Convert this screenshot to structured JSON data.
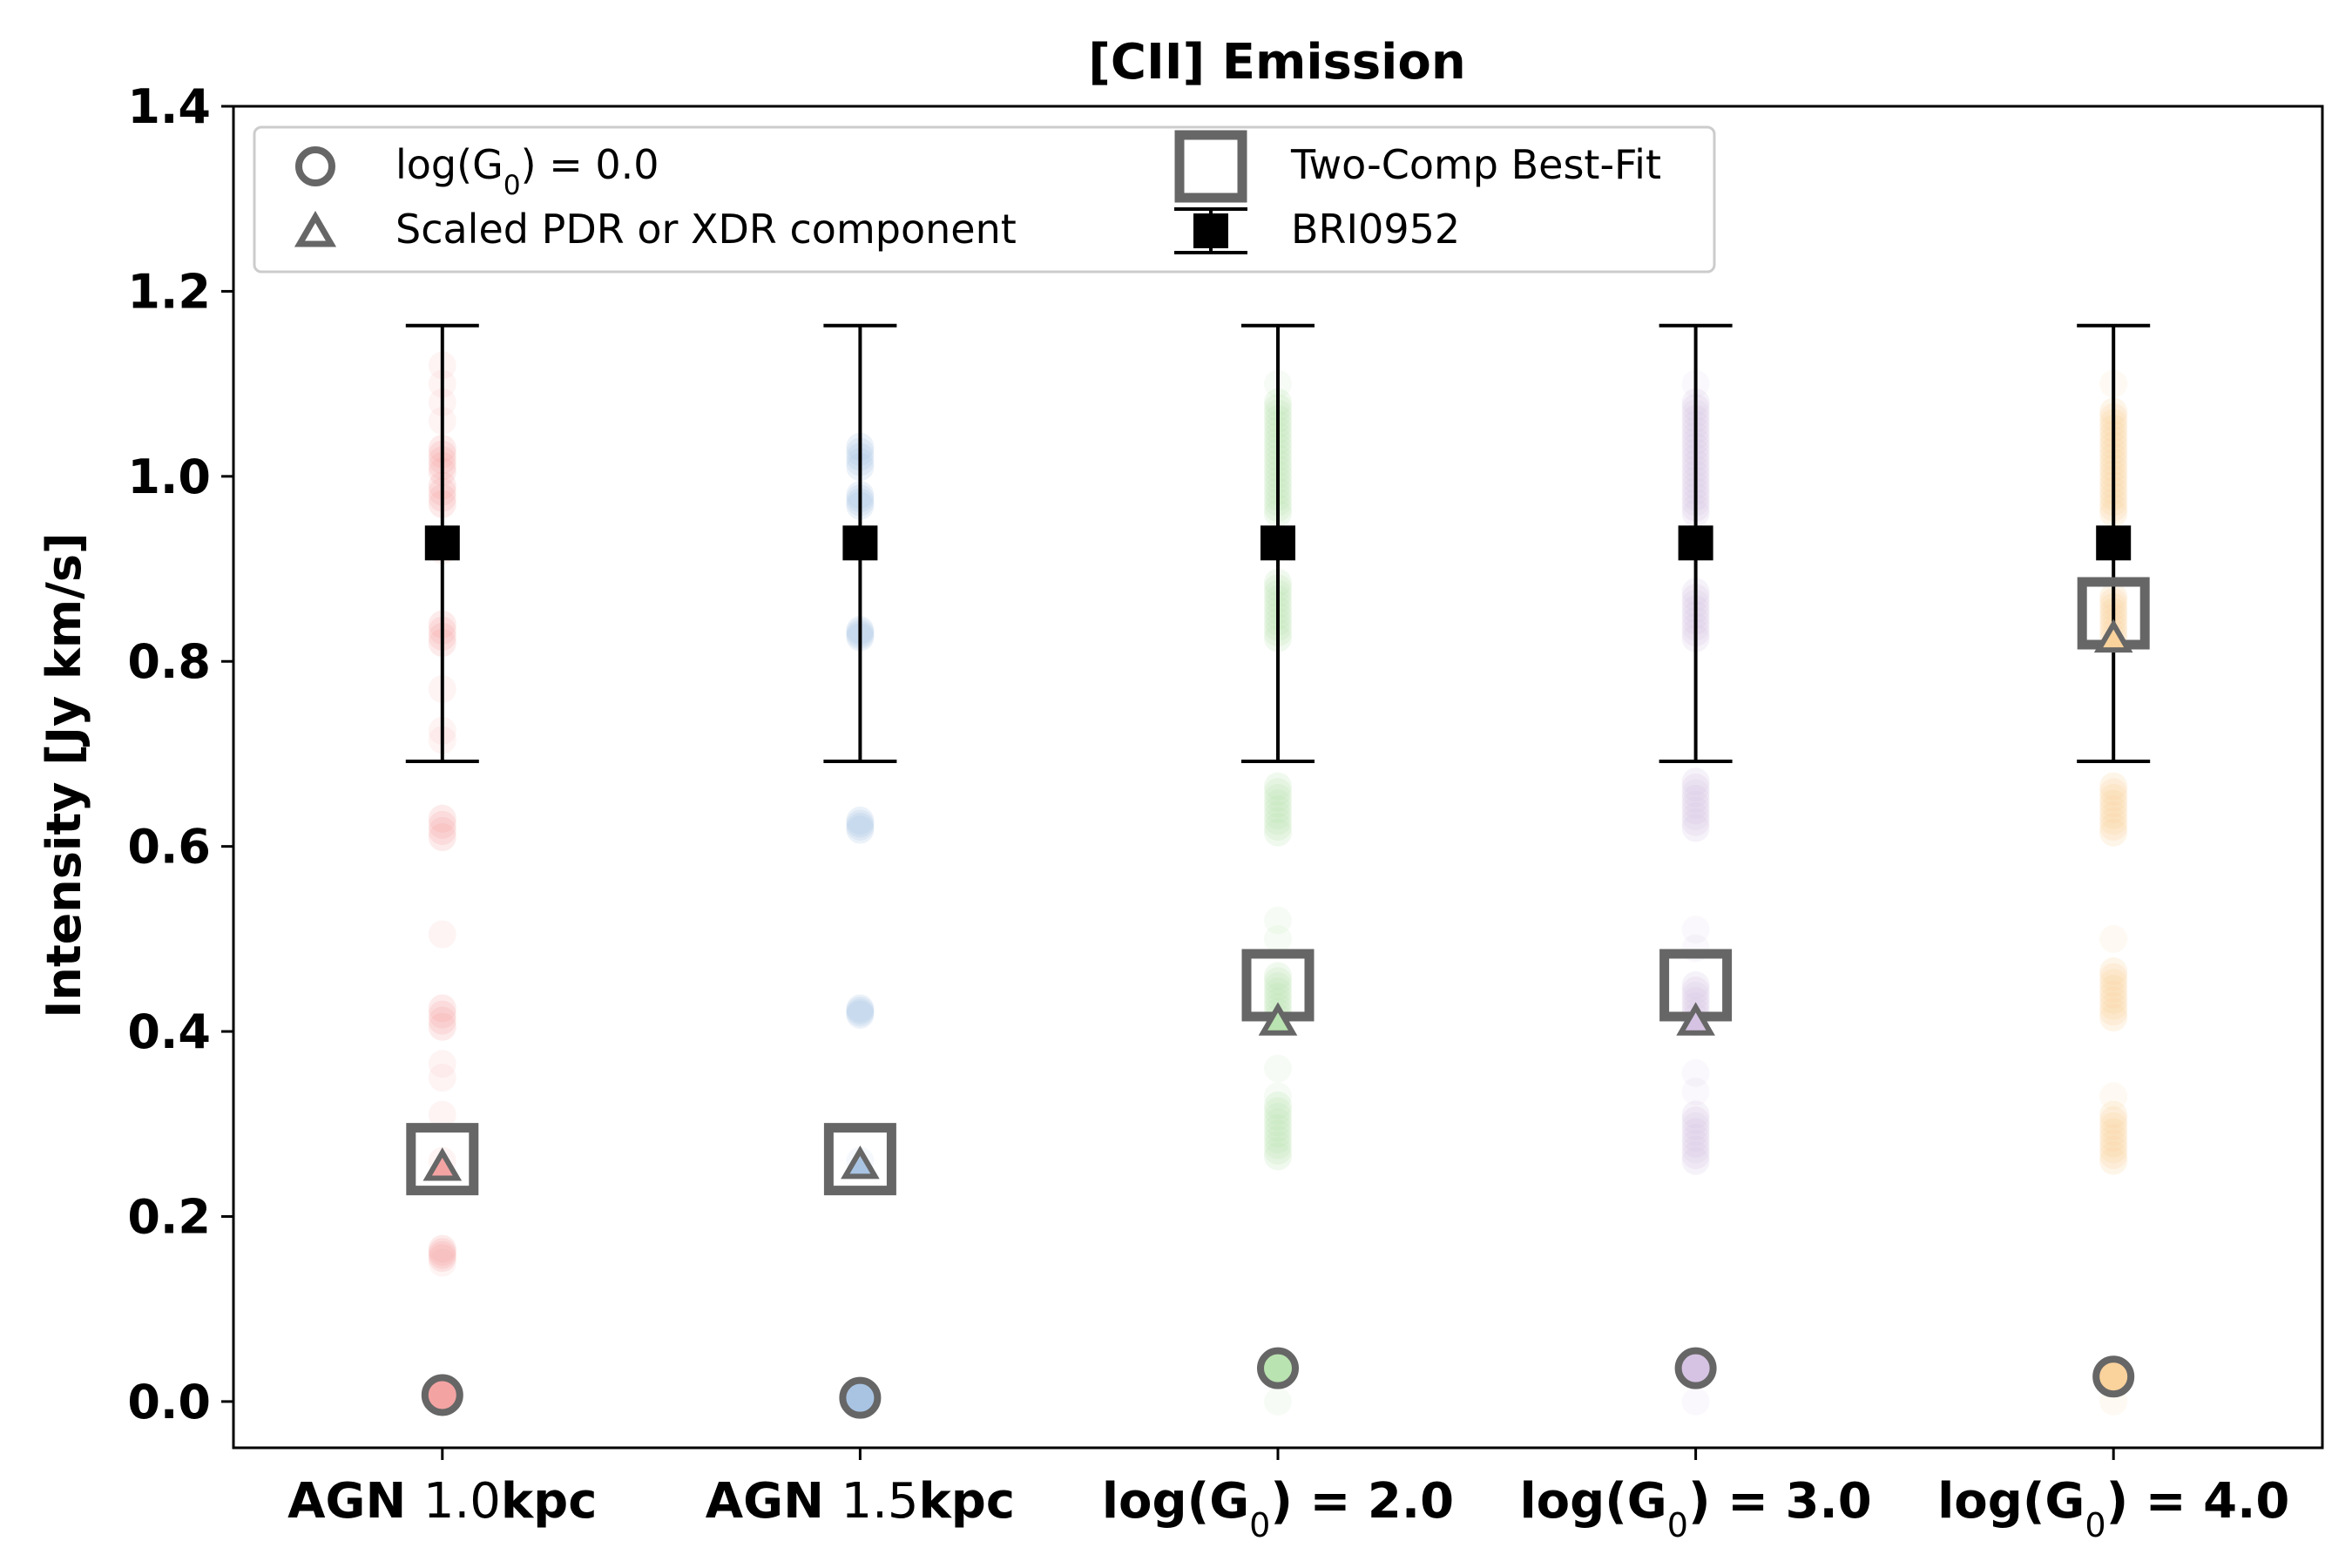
{
  "chart_data": {
    "type": "scatter",
    "title": "[CII] Emission",
    "xlabel": "",
    "ylabel": "Intensity [Jy km/s]",
    "ylim": [
      -0.05,
      1.4
    ],
    "yticks": [
      "0.0",
      "0.2",
      "0.4",
      "0.6",
      "0.8",
      "1.0",
      "1.2",
      "1.4"
    ],
    "ytick_values": [
      0.0,
      0.2,
      0.4,
      0.6,
      0.8,
      1.0,
      1.2,
      1.4
    ],
    "grid": false,
    "legend_position": "top-left",
    "categories": [
      {
        "parts": [
          {
            "text": "AGN ",
            "bold": true
          },
          {
            "text": "1.0",
            "bold": false
          },
          {
            "text": "kpc",
            "bold": true
          }
        ]
      },
      {
        "parts": [
          {
            "text": "AGN ",
            "bold": true
          },
          {
            "text": "1.5",
            "bold": false
          },
          {
            "text": "kpc",
            "bold": true
          }
        ]
      },
      {
        "parts": [
          {
            "text": "log(G",
            "bold": true
          },
          {
            "text": "0",
            "bold": false,
            "sub": true
          },
          {
            "text": ") = 2.0",
            "bold": true
          }
        ]
      },
      {
        "parts": [
          {
            "text": "log(G",
            "bold": true
          },
          {
            "text": "0",
            "bold": false,
            "sub": true
          },
          {
            "text": ") = 3.0",
            "bold": true
          }
        ]
      },
      {
        "parts": [
          {
            "text": "log(G",
            "bold": true
          },
          {
            "text": "0",
            "bold": false,
            "sub": true
          },
          {
            "text": ") = 4.0",
            "bold": true
          }
        ]
      }
    ],
    "colors": [
      "#f4a3a3",
      "#a9c4e3",
      "#b9e3b0",
      "#d6c3e3",
      "#fad29c"
    ],
    "marker_edge_color": "#666666",
    "legend": [
      {
        "marker": "circle",
        "parts": [
          {
            "text": "log(G"
          },
          {
            "text": "0",
            "sub": true
          },
          {
            "text": ") = 0.0"
          }
        ]
      },
      {
        "marker": "triangle",
        "parts": [
          {
            "text": "Scaled PDR or XDR component"
          }
        ]
      },
      {
        "marker": "square",
        "parts": [
          {
            "text": "Two-Comp Best-Fit"
          }
        ]
      },
      {
        "marker": "errorbar",
        "parts": [
          {
            "text": "BRI0952"
          }
        ]
      }
    ],
    "series": [
      {
        "name": "log(G0) = 0.0",
        "marker": "circle",
        "values": [
          0.007,
          0.004,
          0.036,
          0.036,
          0.027
        ]
      },
      {
        "name": "Scaled PDR or XDR component",
        "marker": "triangle",
        "values": [
          0.255,
          0.257,
          0.412,
          0.412,
          0.826
        ]
      },
      {
        "name": "Two-Comp Best-Fit",
        "marker": "square",
        "values": [
          0.262,
          0.262,
          0.45,
          0.45,
          0.852
        ]
      },
      {
        "name": "BRI0952",
        "marker": "errorbar",
        "values": [
          0.928,
          0.928,
          0.928,
          0.928,
          0.928
        ],
        "err_low": [
          0.692,
          0.692,
          0.692,
          0.692,
          0.692
        ],
        "err_high": [
          1.163,
          1.163,
          1.163,
          1.163,
          1.163
        ]
      }
    ],
    "samples": [
      {
        "dense": [
          [
            0.155,
            0.165
          ],
          [
            0.405,
            0.425
          ],
          [
            0.61,
            0.63
          ],
          [
            0.82,
            0.84
          ],
          [
            0.97,
            0.99
          ],
          [
            1.005,
            1.03
          ]
        ],
        "faint": [
          0.505,
          0.26,
          0.31,
          0.35,
          0.365,
          0.15,
          0.77,
          0.715,
          0.725,
          0.92,
          1.06,
          1.08,
          1.1,
          1.12
        ]
      },
      {
        "dense": [
          [
            0.418,
            0.425
          ],
          [
            0.618,
            0.628
          ],
          [
            0.826,
            0.834
          ],
          [
            0.968,
            0.98
          ],
          [
            1.01,
            1.032
          ]
        ],
        "faint": [
          0.26
        ]
      },
      {
        "dense": [
          [
            0.265,
            0.32
          ],
          [
            0.415,
            0.46
          ],
          [
            0.615,
            0.665
          ],
          [
            0.825,
            0.885
          ],
          [
            0.96,
            1.08
          ]
        ],
        "faint": [
          0.0,
          0.33,
          0.36,
          0.5,
          0.52,
          1.1
        ]
      },
      {
        "dense": [
          [
            0.26,
            0.31
          ],
          [
            0.41,
            0.45
          ],
          [
            0.62,
            0.67
          ],
          [
            0.825,
            0.875
          ],
          [
            0.96,
            1.08
          ]
        ],
        "faint": [
          0.0,
          0.335,
          0.355,
          0.49,
          0.51,
          1.1
        ]
      },
      {
        "dense": [
          [
            0.26,
            0.31
          ],
          [
            0.415,
            0.465
          ],
          [
            0.615,
            0.665
          ],
          [
            0.825,
            0.87
          ],
          [
            0.96,
            1.07
          ]
        ],
        "faint": [
          0.0,
          0.33,
          0.5,
          1.1
        ]
      }
    ]
  }
}
